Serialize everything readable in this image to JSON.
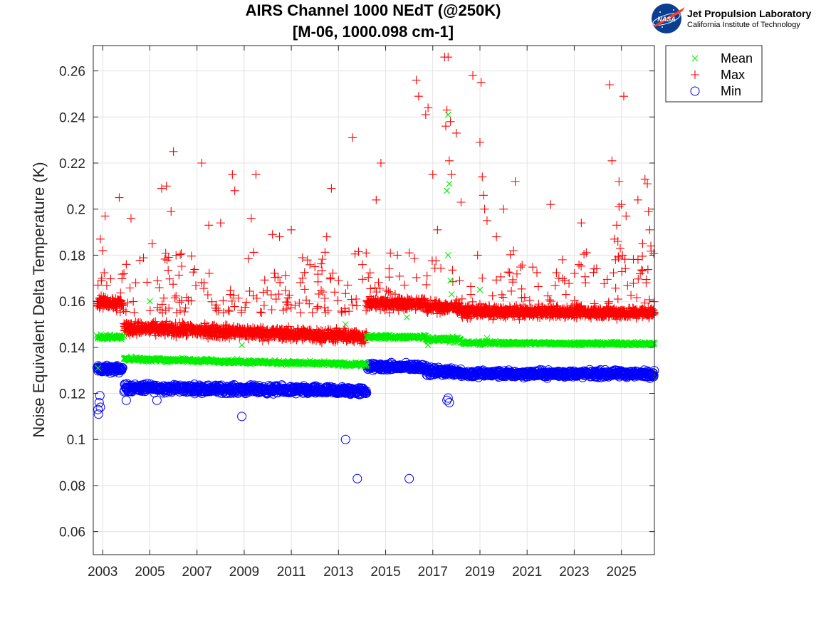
{
  "chart_data": {
    "type": "scatter",
    "title": "AIRS Channel 1000 NEdT (@250K)",
    "subtitle": "[M-06, 1000.098 cm-1]",
    "xlabel": "",
    "ylabel": "Noise Equivalent Delta Temperature (K)",
    "xlim": [
      2002.6,
      2026.4
    ],
    "ylim": [
      0.05,
      0.271
    ],
    "x_ticks": [
      2003,
      2005,
      2007,
      2009,
      2011,
      2013,
      2015,
      2017,
      2019,
      2021,
      2023,
      2025
    ],
    "x_tick_labels": [
      "2003",
      "2005",
      "2007",
      "2009",
      "2011",
      "2013",
      "2015",
      "2017",
      "2019",
      "2021",
      "2023",
      "2025"
    ],
    "y_ticks": [
      0.06,
      0.08,
      0.1,
      0.12,
      0.14,
      0.16,
      0.18,
      0.2,
      0.22,
      0.24,
      0.26
    ],
    "y_tick_labels": [
      "0.06",
      "0.08",
      "0.1",
      "0.12",
      "0.14",
      "0.16",
      "0.18",
      "0.2",
      "0.22",
      "0.24",
      "0.26"
    ],
    "grid": true,
    "legend_position": "outside-top-right",
    "series": [
      {
        "name": "Mean",
        "marker": "x",
        "color": "#00ee00",
        "x": [
          2002.8,
          2003.2,
          2003.6,
          2003.9,
          2004.2,
          2005.0,
          2006.0,
          2007.0,
          2008.0,
          2009.0,
          2010.0,
          2011.0,
          2012.0,
          2013.0,
          2014.1,
          2014.2,
          2014.5,
          2015.0,
          2016.0,
          2016.7,
          2016.8,
          2017.0,
          2017.5,
          2017.6,
          2017.7,
          2017.9,
          2018.0,
          2019.0,
          2020.0,
          2021.0,
          2022.0,
          2023.0,
          2024.0,
          2025.0,
          2026.2,
          2017.6,
          2017.65,
          2017.7,
          2017.75,
          2017.8,
          2017.65,
          2019.0,
          2005.0,
          2008.9,
          2013.3,
          2019.3,
          2015.9
        ],
        "y": [
          0.131,
          0.145,
          0.145,
          0.145,
          0.136,
          0.135,
          0.135,
          0.134,
          0.134,
          0.134,
          0.133,
          0.133,
          0.133,
          0.132,
          0.132,
          0.144,
          0.144,
          0.144,
          0.144,
          0.145,
          0.141,
          0.143,
          0.144,
          0.143,
          0.142,
          0.142,
          0.142,
          0.141,
          0.141,
          0.141,
          0.141,
          0.141,
          0.141,
          0.142,
          0.142,
          0.208,
          0.241,
          0.211,
          0.169,
          0.163,
          0.18,
          0.165,
          0.16,
          0.141,
          0.15,
          0.144,
          0.153
        ],
        "bands": [
          {
            "x": [
              2002.75,
              2003.85
            ],
            "y": 0.1445,
            "spread": 0.0015
          },
          {
            "x": [
              2003.9,
              2014.2
            ],
            "y": [
              0.135,
              0.1325
            ],
            "spread": 0.0012
          },
          {
            "x": [
              2014.2,
              2016.7
            ],
            "y": 0.1445,
            "spread": 0.0012
          },
          {
            "x": [
              2016.7,
              2018.2
            ],
            "y": 0.1435,
            "spread": 0.0015
          },
          {
            "x": [
              2018.2,
              2026.4
            ],
            "y": [
              0.142,
              0.1415
            ],
            "spread": 0.001
          }
        ]
      },
      {
        "name": "Max",
        "marker": "+",
        "color": "#ff0000",
        "x": [
          2002.8,
          2002.9,
          2003.0,
          2003.1,
          2003.7,
          2003.9,
          2004.0,
          2004.2,
          2004.4,
          2005.1,
          2005.5,
          2005.7,
          2005.9,
          2006.0,
          2007.2,
          2007.5,
          2008.0,
          2008.5,
          2008.6,
          2009.3,
          2009.5,
          2010.2,
          2010.5,
          2011.0,
          2012.0,
          2012.5,
          2012.7,
          2013.0,
          2013.6,
          2014.6,
          2014.8,
          2015.5,
          2016.0,
          2016.3,
          2016.4,
          2016.7,
          2016.8,
          2017.0,
          2017.2,
          2017.5,
          2017.55,
          2017.6,
          2017.65,
          2017.7,
          2017.75,
          2017.8,
          2018.0,
          2018.2,
          2018.7,
          2018.9,
          2019.0,
          2019.05,
          2019.1,
          2019.15,
          2019.2,
          2019.3,
          2019.7,
          2020.0,
          2020.5,
          2022.0,
          2022.5,
          2023.3,
          2024.5,
          2024.6,
          2024.9,
          2025.0,
          2025.1,
          2025.2,
          2025.7,
          2025.9,
          2026.0,
          2026.1,
          2026.15,
          2026.2,
          2026.25,
          2024.8,
          2024.85,
          2024.9,
          2024.95,
          2025.05,
          2024.7,
          2024.75,
          2026.05,
          2025.8,
          2007.3
        ],
        "y": [
          0.167,
          0.187,
          0.182,
          0.197,
          0.205,
          0.172,
          0.176,
          0.196,
          0.168,
          0.185,
          0.209,
          0.21,
          0.199,
          0.225,
          0.22,
          0.193,
          0.194,
          0.215,
          0.208,
          0.196,
          0.215,
          0.189,
          0.188,
          0.191,
          0.175,
          0.188,
          0.209,
          0.169,
          0.231,
          0.204,
          0.22,
          0.18,
          0.181,
          0.256,
          0.249,
          0.241,
          0.244,
          0.215,
          0.191,
          0.266,
          0.236,
          0.243,
          0.266,
          0.221,
          0.238,
          0.215,
          0.233,
          0.203,
          0.258,
          0.18,
          0.229,
          0.255,
          0.214,
          0.206,
          0.2,
          0.195,
          0.188,
          0.2,
          0.212,
          0.202,
          0.178,
          0.194,
          0.254,
          0.221,
          0.212,
          0.202,
          0.249,
          0.197,
          0.204,
          0.185,
          0.213,
          0.211,
          0.199,
          0.191,
          0.184,
          0.193,
          0.186,
          0.201,
          0.183,
          0.18,
          0.187,
          0.178,
          0.168,
          0.172,
          0.168
        ],
        "bands": [
          {
            "x": [
              2002.75,
              2003.85
            ],
            "y": 0.1595,
            "spread": 0.0035
          },
          {
            "x": [
              2003.9,
              2014.2
            ],
            "y": [
              0.1485,
              0.1445
            ],
            "spread": 0.004
          },
          {
            "x": [
              2014.2,
              2016.7
            ],
            "y": 0.159,
            "spread": 0.0035
          },
          {
            "x": [
              2016.7,
              2018.2
            ],
            "y": 0.1575,
            "spread": 0.0035
          },
          {
            "x": [
              2018.2,
              2026.4
            ],
            "y": [
              0.1555,
              0.155
            ],
            "spread": 0.0035
          }
        ],
        "scatter_band": {
          "x": [
            2002.75,
            2026.4
          ],
          "y_low": 0.155,
          "y_high": 0.182
        }
      },
      {
        "name": "Min",
        "marker": "o",
        "color": "#0000ff",
        "x": [
          2002.8,
          2002.82,
          2002.85,
          2002.88,
          2002.9,
          2004.0,
          2005.3,
          2008.9,
          2013.3,
          2013.8,
          2016.0,
          2017.6,
          2017.65,
          2017.7
        ],
        "y": [
          0.113,
          0.111,
          0.116,
          0.119,
          0.114,
          0.117,
          0.117,
          0.11,
          0.1,
          0.083,
          0.083,
          0.117,
          0.118,
          0.116
        ],
        "bands": [
          {
            "x": [
              2002.75,
              2003.85
            ],
            "y": 0.1305,
            "spread": 0.0022
          },
          {
            "x": [
              2003.9,
              2014.2
            ],
            "y": [
              0.1225,
              0.121
            ],
            "spread": 0.0025
          },
          {
            "x": [
              2014.2,
              2016.7
            ],
            "y": 0.1315,
            "spread": 0.0022
          },
          {
            "x": [
              2016.7,
              2018.2
            ],
            "y": 0.1295,
            "spread": 0.0025
          },
          {
            "x": [
              2018.2,
              2026.4
            ],
            "y": [
              0.1285,
              0.1285
            ],
            "spread": 0.0022
          }
        ]
      }
    ]
  },
  "logo": {
    "emblem_text": "NASA",
    "name": "Jet Propulsion Laboratory",
    "subtitle": "California Institute of Technology"
  },
  "colors": {
    "mean": "#00ee00",
    "max": "#ff0000",
    "min": "#0000ff",
    "grid": "#e3e3e3",
    "axis": "#262626",
    "nasa_blue": "#0b3d91",
    "nasa_red": "#fc3d21"
  }
}
